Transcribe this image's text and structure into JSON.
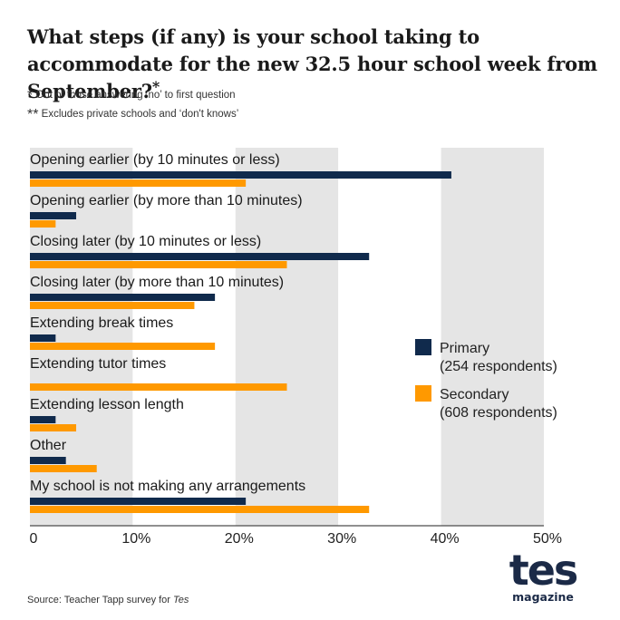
{
  "title": "What steps (if any) is your school taking to accommodate for the new 32.5 hour school week from September?",
  "title_marker": "*",
  "footnotes": [
    {
      "marker": "*",
      "text": "Out of those answering ‘no’ to first question"
    },
    {
      "marker": "**",
      "text": "Excludes private schools and ‘don't knows’"
    }
  ],
  "source": {
    "prefix": "Source: Teacher Tapp survey for ",
    "publication": "Tes"
  },
  "logo": {
    "word": "tes",
    "sub": "magazine"
  },
  "colors": {
    "primary": "#102a4c",
    "secondary": "#ff9900",
    "band": "#e5e5e5",
    "axis": "#222222"
  },
  "chart_data": {
    "type": "bar",
    "orientation": "horizontal",
    "categories": [
      "Opening earlier (by 10 minutes or less)",
      "Opening earlier (by more than 10 minutes)",
      "Closing later (by 10 minutes or less)",
      "Closing later (by more than 10 minutes)",
      "Extending break times",
      "Extending tutor times",
      "Extending lesson length",
      "Other",
      "My school is not making any arrangements"
    ],
    "series": [
      {
        "name": "Primary",
        "sub": "(254 respondents)",
        "color": "#102a4c",
        "values": [
          41,
          4.5,
          33,
          18,
          2.5,
          0,
          2.5,
          3.5,
          21
        ]
      },
      {
        "name": "Secondary",
        "sub": "(608 respondents)",
        "color": "#ff9900",
        "values": [
          21,
          2.5,
          25,
          16,
          18,
          25,
          4.5,
          6.5,
          33
        ]
      }
    ],
    "xlim": [
      0,
      50
    ],
    "ticks": [
      0,
      10,
      20,
      30,
      40,
      50
    ],
    "tick_labels": [
      "0",
      "10%",
      "20%",
      "30%",
      "40%",
      "50%"
    ],
    "grid": "alternating vertical bands",
    "legend": "right"
  }
}
